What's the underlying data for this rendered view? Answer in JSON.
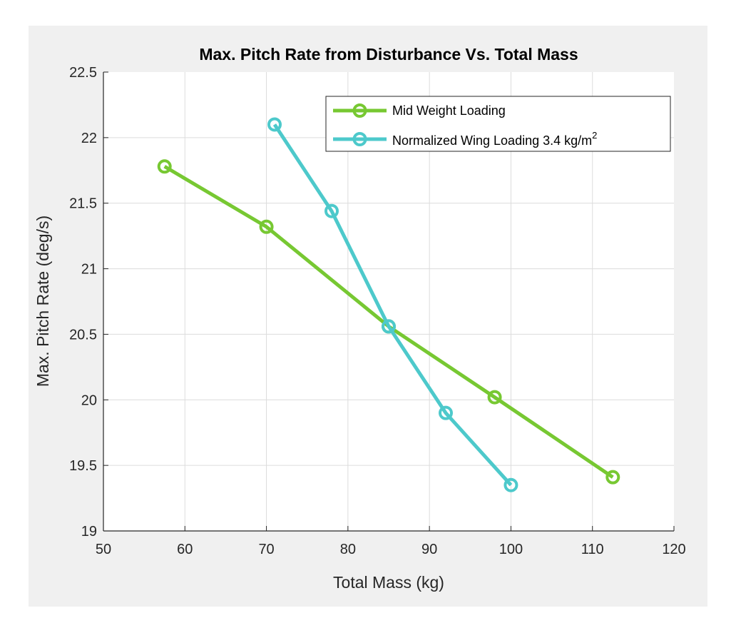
{
  "chart_data": {
    "type": "line",
    "title": "Max. Pitch Rate from Disturbance Vs. Total Mass",
    "xlabel": "Total Mass (kg)",
    "ylabel": "Max. Pitch Rate (deg/s)",
    "xlim": [
      50,
      120
    ],
    "ylim": [
      19,
      22.5
    ],
    "xticks": [
      50,
      60,
      70,
      80,
      90,
      100,
      110,
      120
    ],
    "yticks": [
      19,
      19.5,
      20,
      20.5,
      21,
      21.5,
      22,
      22.5
    ],
    "grid": true,
    "legend_position": "top-right",
    "series": [
      {
        "name": "Mid Weight Loading",
        "color": "#77c832",
        "x": [
          57.5,
          70,
          85,
          98,
          112.5
        ],
        "y": [
          21.78,
          21.32,
          20.56,
          20.02,
          19.41
        ]
      },
      {
        "name_text": "Normalized Wing Loading 3.4 kg/m",
        "name_sup": "2",
        "color": "#4dc9cb",
        "x": [
          71,
          78,
          85,
          92,
          100
        ],
        "y": [
          22.1,
          21.44,
          20.56,
          19.9,
          19.35
        ]
      }
    ]
  }
}
